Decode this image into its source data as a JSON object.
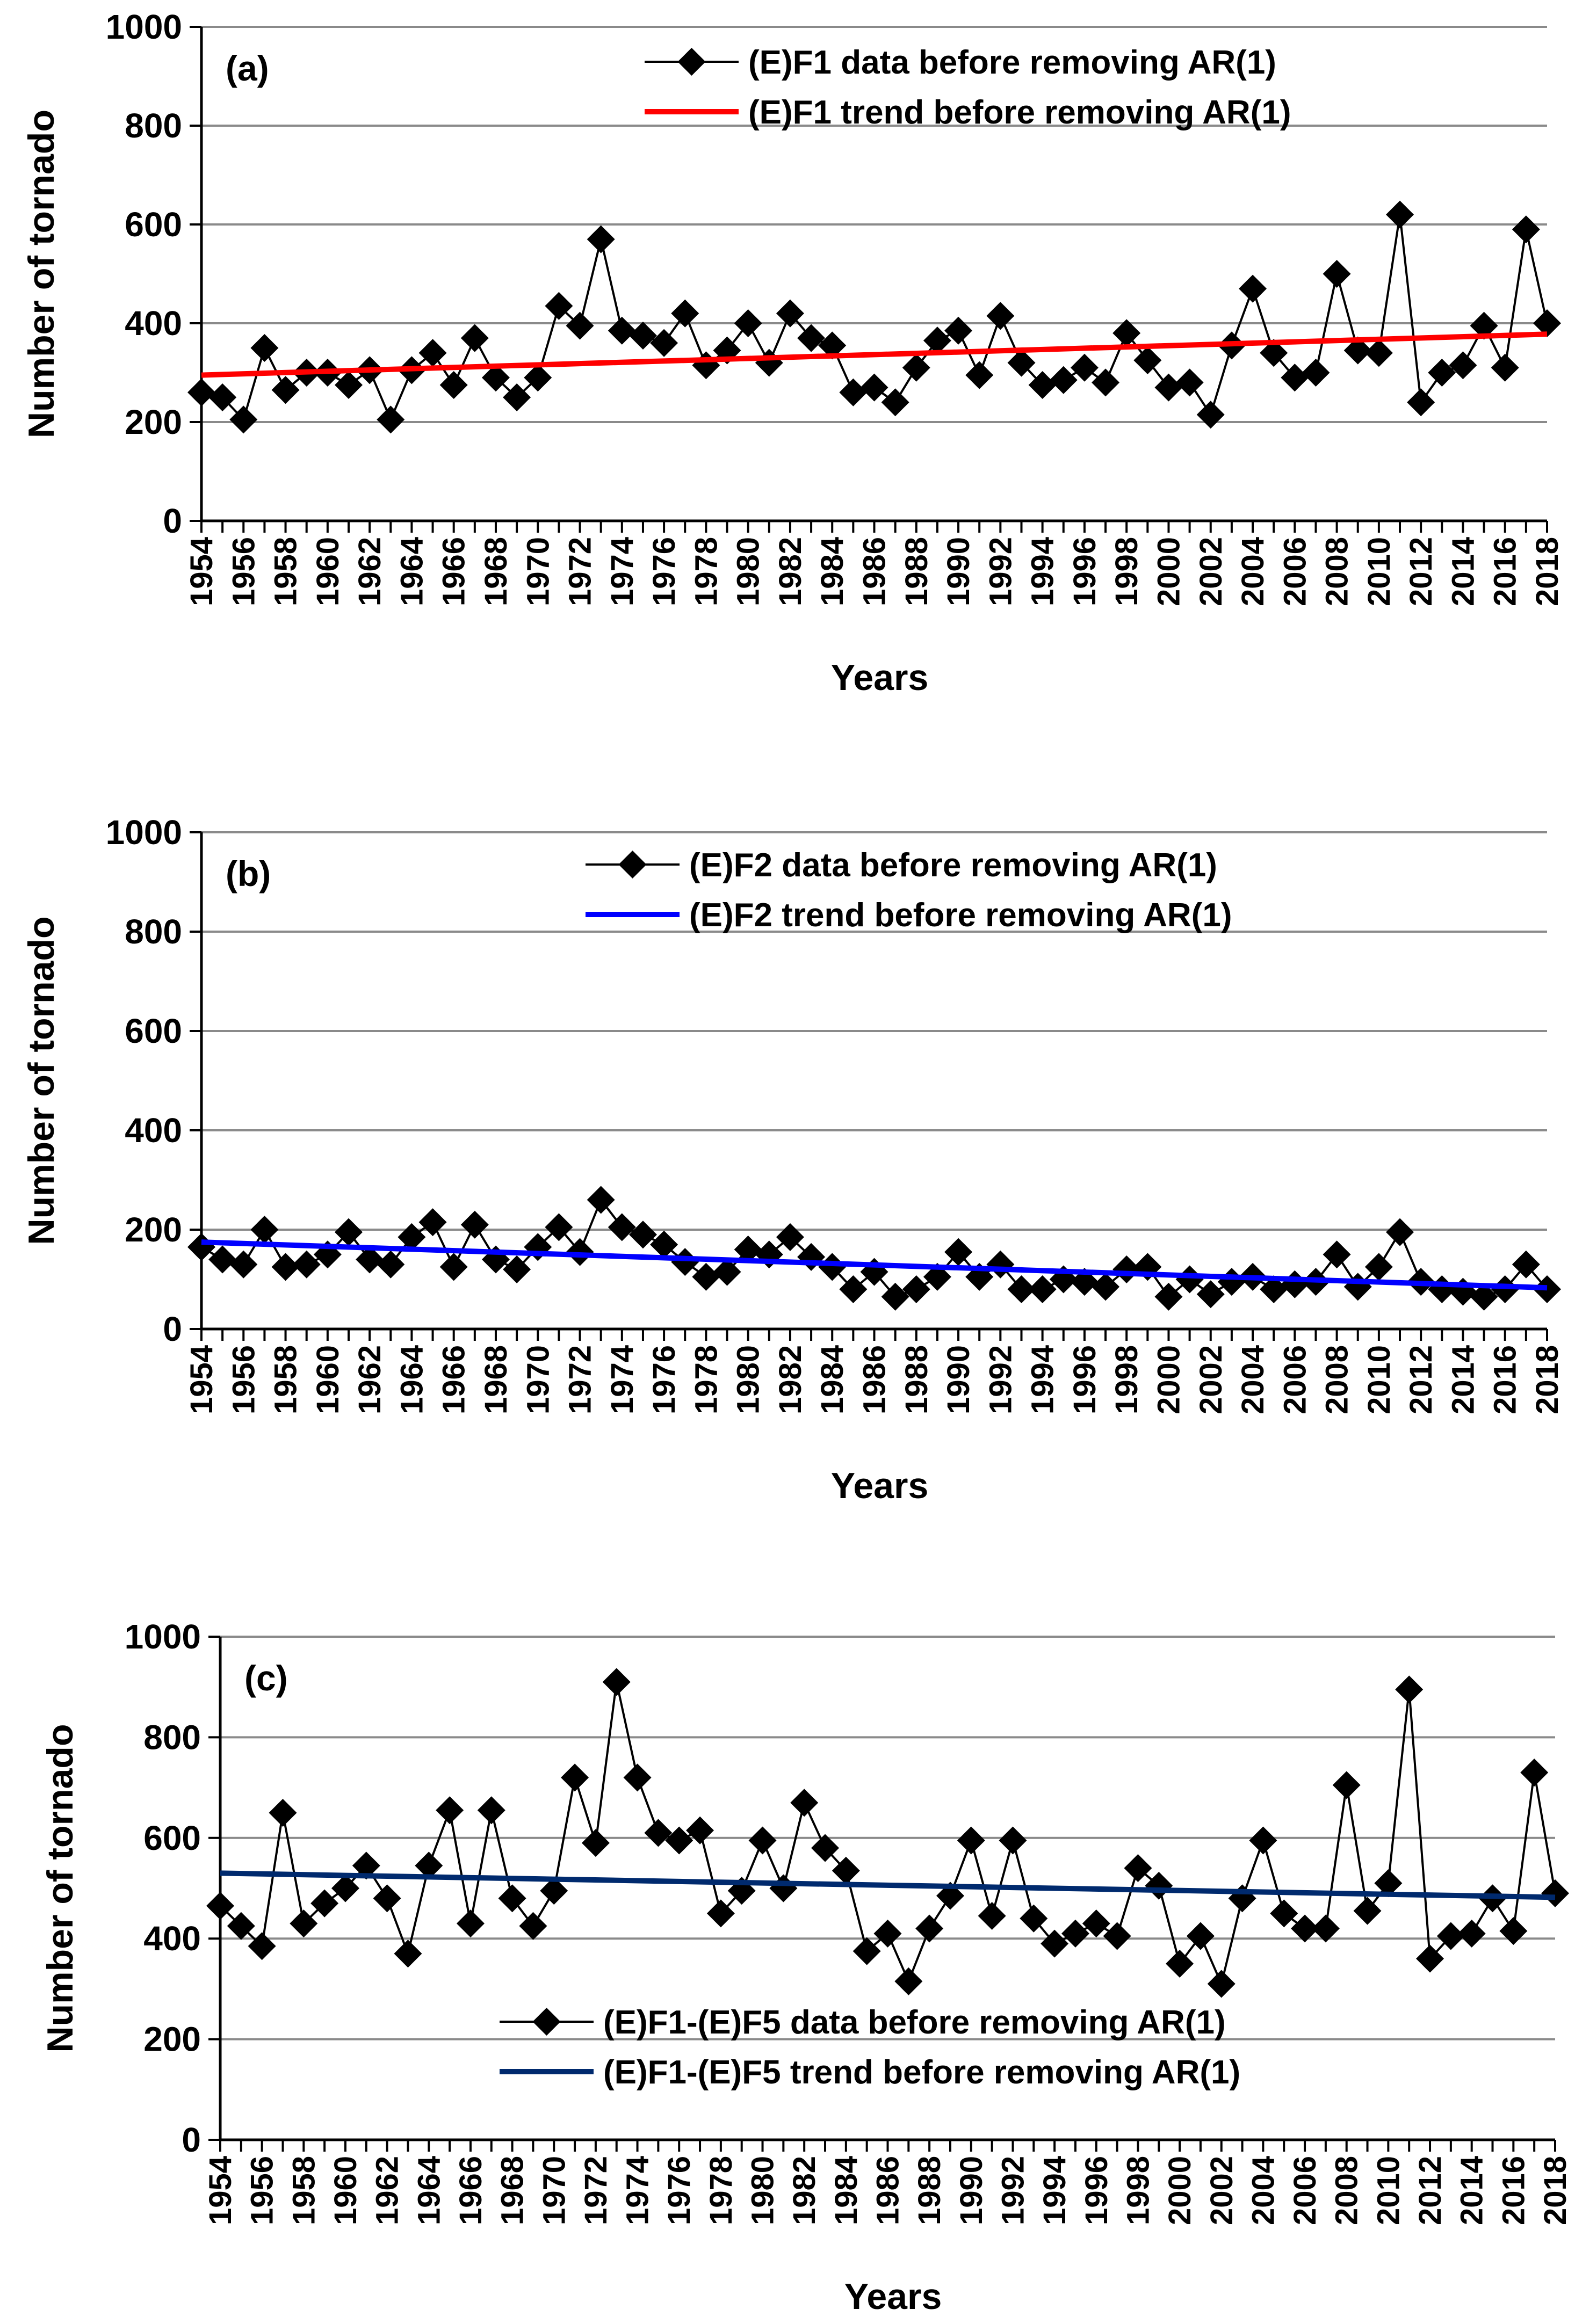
{
  "chart_data": [
    {
      "type": "line",
      "panel_label": "(a)",
      "xlabel": "Years",
      "ylabel": "Number of tornado",
      "ylim": [
        0,
        1000
      ],
      "yticks": [
        0,
        200,
        400,
        600,
        800,
        1000
      ],
      "xlim": [
        1954,
        2018
      ],
      "xtick_labels": [
        "1954",
        "1956",
        "1958",
        "1960",
        "1962",
        "1964",
        "1966",
        "1968",
        "1970",
        "1972",
        "1974",
        "1976",
        "1978",
        "1980",
        "1982",
        "1984",
        "1986",
        "1988",
        "1990",
        "1992",
        "1994",
        "1996",
        "1998",
        "2000",
        "2002",
        "2004",
        "2006",
        "2008",
        "2010",
        "2012",
        "2014",
        "2016",
        "2018"
      ],
      "legend_position": "top-right",
      "series": [
        {
          "name": "(E)F1 data before removing AR(1)",
          "color": "#000000",
          "marker": "diamond",
          "x_start": 1954,
          "values": [
            260,
            250,
            205,
            350,
            265,
            300,
            300,
            275,
            305,
            205,
            305,
            340,
            275,
            370,
            290,
            250,
            290,
            435,
            395,
            570,
            385,
            375,
            360,
            420,
            315,
            345,
            400,
            320,
            420,
            370,
            355,
            260,
            270,
            240,
            310,
            365,
            385,
            295,
            415,
            320,
            275,
            285,
            310,
            280,
            380,
            325,
            270,
            280,
            215,
            355,
            470,
            340,
            290,
            300,
            500,
            345,
            340,
            620,
            240,
            300,
            315,
            395,
            310,
            590,
            400
          ]
        },
        {
          "name": "(E)F1 trend before removing AR(1)",
          "color": "#ff0000",
          "kind": "trend",
          "x": [
            1954,
            2018
          ],
          "values": [
            295,
            378
          ]
        }
      ]
    },
    {
      "type": "line",
      "panel_label": "(b)",
      "xlabel": "Years",
      "ylabel": "Number of tornado",
      "ylim": [
        0,
        1000
      ],
      "yticks": [
        0,
        200,
        400,
        600,
        800,
        1000
      ],
      "xlim": [
        1954,
        2018
      ],
      "xtick_labels": [
        "1954",
        "1956",
        "1958",
        "1960",
        "1962",
        "1964",
        "1966",
        "1968",
        "1970",
        "1972",
        "1974",
        "1976",
        "1978",
        "1980",
        "1982",
        "1984",
        "1986",
        "1988",
        "1990",
        "1992",
        "1994",
        "1996",
        "1998",
        "2000",
        "2002",
        "2004",
        "2006",
        "2008",
        "2010",
        "2012",
        "2014",
        "2016",
        "2018"
      ],
      "legend_position": "top-right",
      "series": [
        {
          "name": "(E)F2 data before removing AR(1)",
          "color": "#000000",
          "marker": "diamond",
          "x_start": 1954,
          "values": [
            165,
            140,
            130,
            200,
            125,
            130,
            150,
            195,
            140,
            130,
            185,
            215,
            125,
            210,
            140,
            120,
            165,
            205,
            155,
            260,
            205,
            190,
            170,
            135,
            105,
            115,
            160,
            150,
            185,
            145,
            125,
            80,
            115,
            65,
            80,
            105,
            155,
            105,
            130,
            80,
            80,
            100,
            95,
            85,
            120,
            125,
            65,
            100,
            70,
            95,
            105,
            80,
            90,
            95,
            150,
            85,
            125,
            195,
            95,
            80,
            75,
            65,
            80,
            130,
            80
          ]
        },
        {
          "name": "(E)F2 trend before removing AR(1)",
          "color": "#0000ff",
          "kind": "trend",
          "x": [
            1954,
            2018
          ],
          "values": [
            175,
            83
          ]
        }
      ]
    },
    {
      "type": "line",
      "panel_label": "(c)",
      "xlabel": "Years",
      "ylabel": "Number of tornado",
      "ylim": [
        0,
        1000
      ],
      "yticks": [
        0,
        200,
        400,
        600,
        800,
        1000
      ],
      "xlim": [
        1954,
        2018
      ],
      "xtick_labels": [
        "1954",
        "1956",
        "1958",
        "1960",
        "1962",
        "1964",
        "1966",
        "1968",
        "1970",
        "1972",
        "1974",
        "1976",
        "1978",
        "1980",
        "1982",
        "1984",
        "1986",
        "1988",
        "1990",
        "1992",
        "1994",
        "1996",
        "1998",
        "2000",
        "2002",
        "2004",
        "2006",
        "2008",
        "2010",
        "2012",
        "2014",
        "2016",
        "2018"
      ],
      "legend_position": "bottom-center",
      "series": [
        {
          "name": "(E)F1-(E)F5 data before removing AR(1)",
          "color": "#000000",
          "marker": "diamond",
          "x_start": 1954,
          "values": [
            465,
            425,
            385,
            650,
            430,
            470,
            500,
            545,
            480,
            370,
            545,
            655,
            430,
            655,
            480,
            425,
            495,
            720,
            590,
            910,
            720,
            610,
            595,
            615,
            450,
            495,
            595,
            500,
            670,
            580,
            535,
            375,
            410,
            315,
            420,
            485,
            595,
            445,
            595,
            440,
            390,
            410,
            430,
            405,
            540,
            505,
            350,
            405,
            310,
            480,
            595,
            450,
            420,
            420,
            705,
            455,
            510,
            895,
            360,
            405,
            410,
            480,
            415,
            730,
            490
          ]
        },
        {
          "name": "(E)F1-(E)F5 trend before removing AR(1)",
          "color": "#002a6e",
          "kind": "trend",
          "x": [
            1954,
            2018
          ],
          "values": [
            530,
            482
          ]
        }
      ]
    }
  ]
}
